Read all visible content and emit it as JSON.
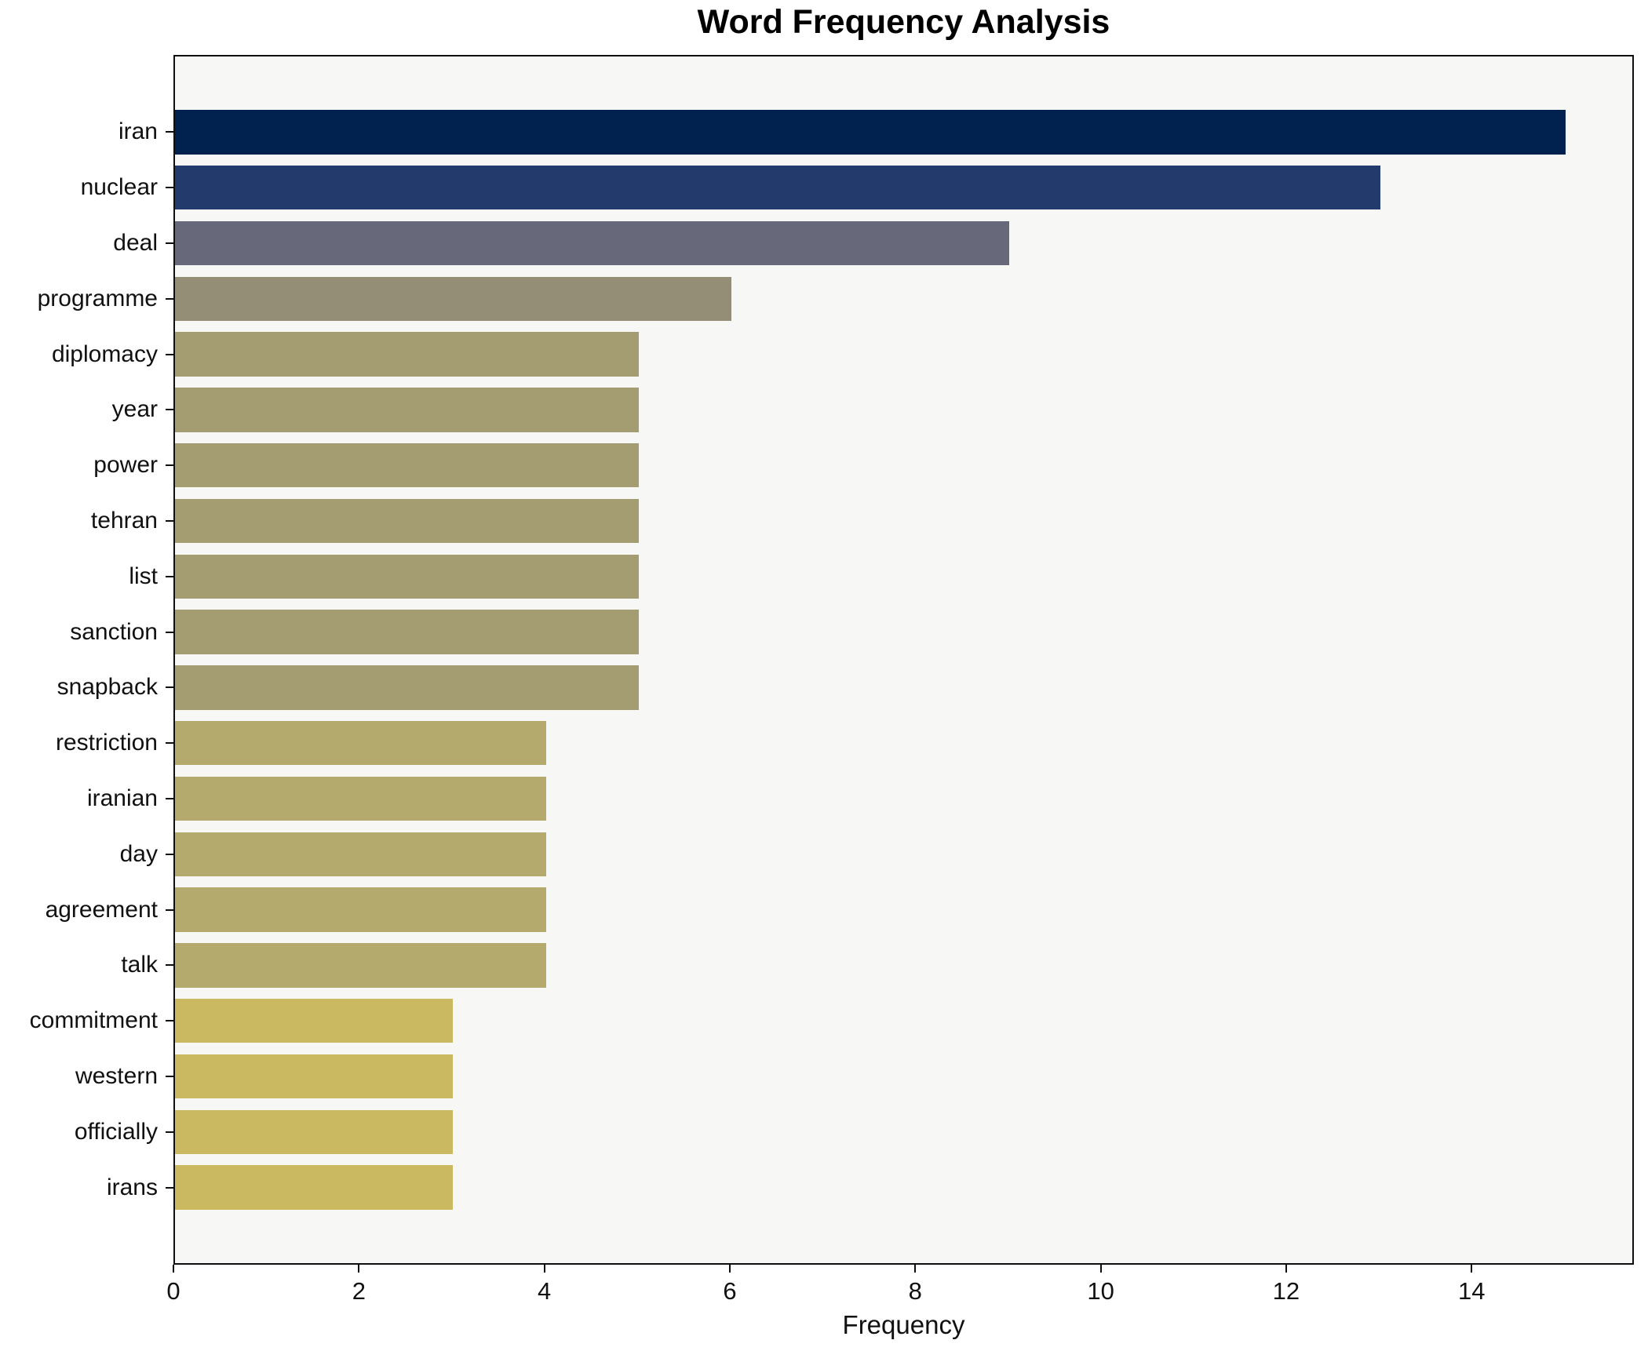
{
  "chart_data": {
    "type": "bar",
    "orientation": "horizontal",
    "title": "Word Frequency Analysis",
    "xlabel": "Frequency",
    "xlim": [
      0,
      15.75
    ],
    "xticks": [
      0,
      2,
      4,
      6,
      8,
      10,
      12,
      14
    ],
    "grid": false,
    "legend": null,
    "plot_background": "#f7f7f6",
    "figure_background": "#ffffff",
    "spine_color": "#0f0f0f",
    "categories": [
      "iran",
      "nuclear",
      "deal",
      "programme",
      "diplomacy",
      "year",
      "power",
      "tehran",
      "list",
      "sanction",
      "snapback",
      "restriction",
      "iranian",
      "day",
      "agreement",
      "talk",
      "commitment",
      "western",
      "officially",
      "irans"
    ],
    "values": [
      15,
      13,
      9,
      6,
      5,
      5,
      5,
      5,
      5,
      5,
      5,
      4,
      4,
      4,
      4,
      4,
      3,
      3,
      3,
      3
    ],
    "bar_colors": [
      "#01224e",
      "#233a6c",
      "#67697a",
      "#958e77",
      "#a49d72",
      "#a49d72",
      "#a49d72",
      "#a49d72",
      "#a49d72",
      "#a49d72",
      "#a49d72",
      "#b5aa6d",
      "#b5aa6d",
      "#b5aa6d",
      "#b5aa6d",
      "#b5aa6d",
      "#cab961",
      "#cab961",
      "#cab961",
      "#cab961"
    ]
  }
}
